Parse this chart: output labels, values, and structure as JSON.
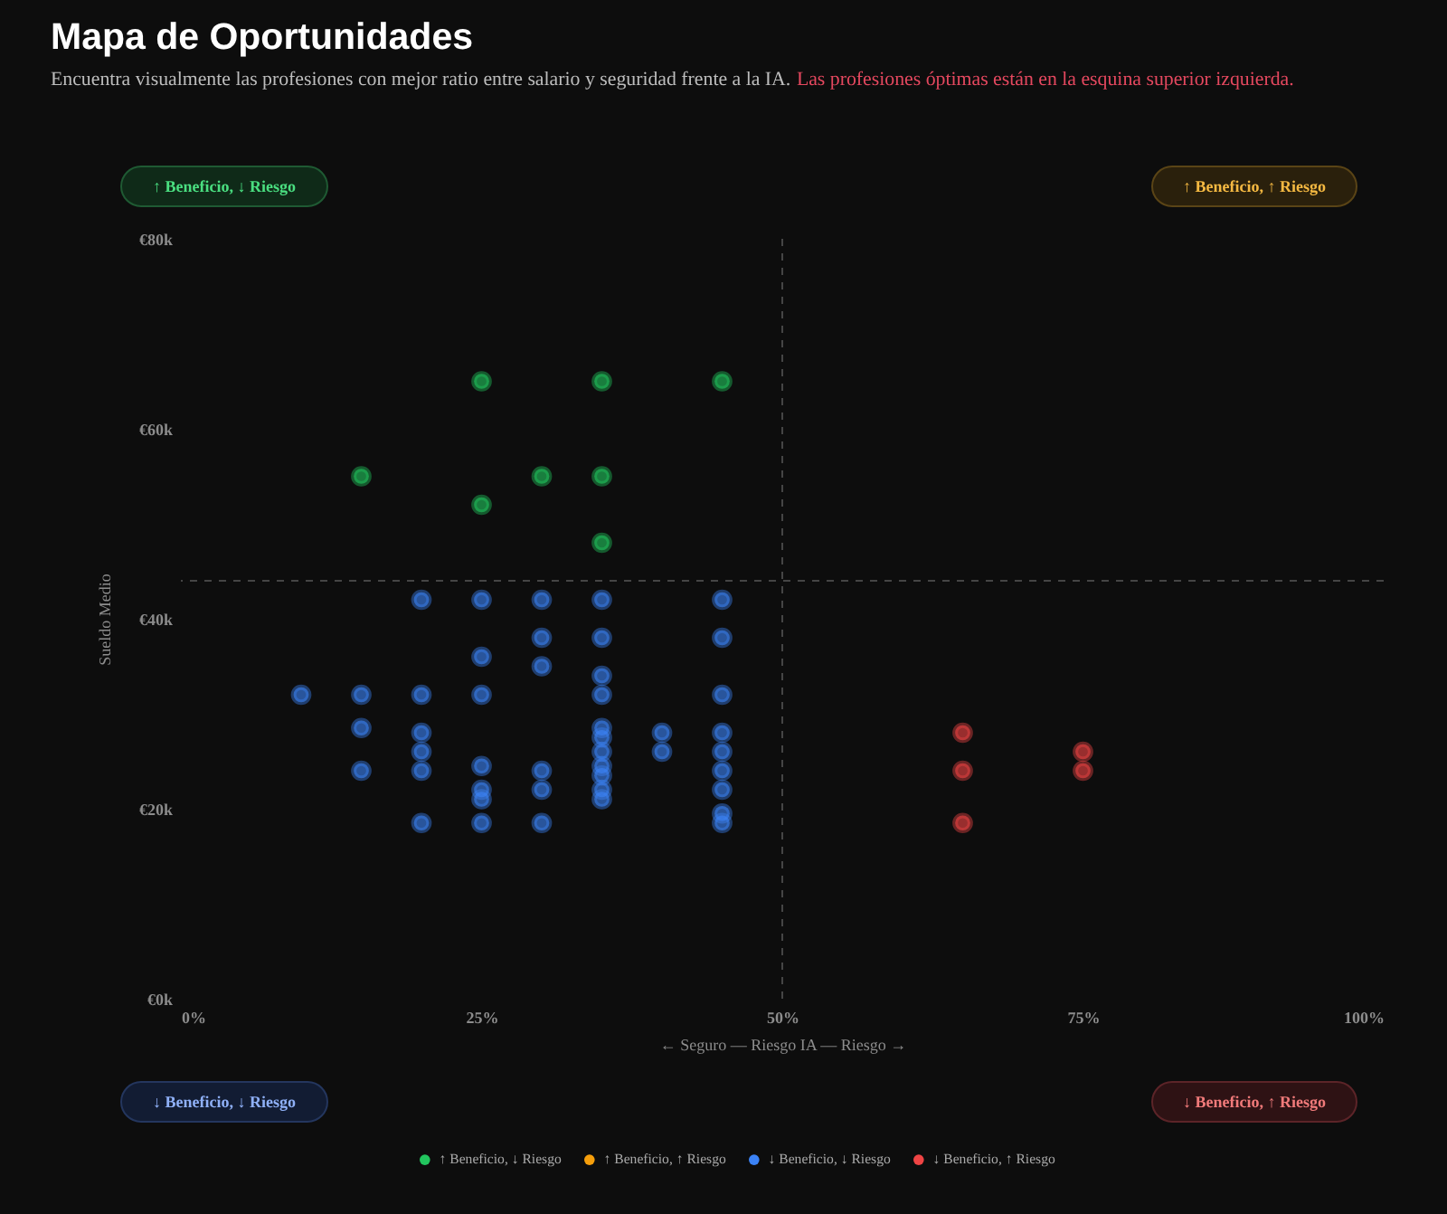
{
  "chart_data": {
    "type": "scatter",
    "title": "Mapa de Oportunidades",
    "subtitle": "Encuentra visualmente las profesiones con mejor ratio entre salario y seguridad frente a la IA.",
    "xlabel": "← Seguro — Riesgo IA — Riesgo →",
    "ylabel": "Sueldo Medio",
    "annotations": [
      "Las profesiones óptimas están en la esquina superior izquierda.",
      "↑ Beneficio, ↓ Riesgo",
      "↑ Beneficio, ↑ Riesgo",
      "↓ Beneficio, ↓ Riesgo",
      "↓ Beneficio, ↑ Riesgo"
    ],
    "xlim": [
      0,
      100
    ],
    "xticks": [
      {
        "value": 0,
        "label": "0%"
      },
      {
        "value": 25,
        "label": "25%"
      },
      {
        "value": 50,
        "label": "50%"
      },
      {
        "value": 75,
        "label": "75%"
      },
      {
        "value": 100,
        "label": "100%"
      }
    ],
    "ylim": [
      0,
      80
    ],
    "yticks": [
      {
        "value": 0,
        "label": "€0k"
      },
      {
        "value": 20,
        "label": "€20k"
      },
      {
        "value": 40,
        "label": "€40k"
      },
      {
        "value": 60,
        "label": "€60k"
      },
      {
        "value": 80,
        "label": "€80k"
      }
    ],
    "series": [
      {
        "name": "↑ Beneficio, ↓ Riesgo",
        "color": "#22c55e",
        "x": [
          25,
          35,
          45,
          15,
          30,
          35,
          25,
          35
        ],
        "values": [
          65,
          65,
          65,
          55,
          55,
          55,
          52,
          48
        ]
      },
      {
        "name": "↑ Beneficio, ↑ Riesgo",
        "color": "#f59e0b"
      },
      {
        "name": "↓ Beneficio, ↓ Riesgo",
        "color": "#3b82f6",
        "x": [
          10,
          15,
          15,
          15,
          20,
          20,
          20,
          20,
          20,
          20,
          25,
          25,
          25,
          25,
          25,
          25,
          25,
          30,
          30,
          30,
          30,
          30,
          30,
          35,
          35,
          35,
          35,
          35,
          35,
          35,
          35,
          35,
          35,
          35,
          40,
          40,
          45,
          45,
          45,
          45,
          45,
          45,
          45,
          45,
          45
        ],
        "values": [
          32,
          32,
          28.5,
          24,
          42,
          32,
          28,
          26,
          24,
          18.5,
          42,
          36,
          32,
          24.5,
          22,
          21,
          18.5,
          42,
          38,
          35,
          24,
          22,
          18.5,
          42,
          38,
          34,
          32,
          28.5,
          27.5,
          26,
          24.5,
          23.5,
          22,
          21,
          28,
          26,
          42,
          38,
          32,
          28,
          26,
          24,
          22,
          19.5,
          18.5
        ]
      },
      {
        "name": "↓ Beneficio, ↑ Riesgo",
        "color": "#ef4444",
        "x": [
          65,
          65,
          65,
          75,
          75
        ],
        "values": [
          28,
          24,
          18.5,
          26,
          24
        ]
      }
    ],
    "ref_lines": [
      {
        "axis": "x",
        "value": 50,
        "color": "#454545",
        "line_style": "dashed"
      },
      {
        "axis": "y",
        "value": 44,
        "color": "#454545",
        "line_style": "dashed"
      }
    ],
    "grid": false,
    "legend": "bottom",
    "marker": "circle"
  }
}
